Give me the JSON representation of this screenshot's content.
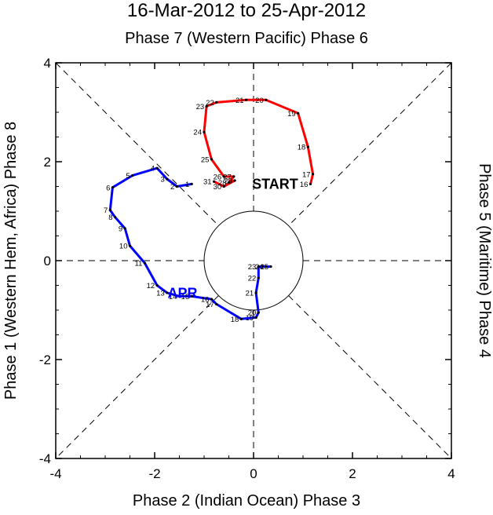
{
  "chart_data": {
    "type": "line",
    "title": "16-Mar-2012 to 25-Apr-2012",
    "phase_labels": {
      "top": "Phase 7 (Western Pacific) Phase 6",
      "bottom": "Phase 2 (Indian Ocean) Phase 3",
      "left": "Phase 1 (Western Hem, Africa) Phase 8",
      "right": "Phase 5 (Maritime) Phase 4"
    },
    "xlim": [
      -4,
      4
    ],
    "ylim": [
      -4,
      4
    ],
    "xticks": [
      "-4",
      "-2",
      "0",
      "2",
      "4"
    ],
    "yticks": [
      "-4",
      "-2",
      "0",
      "2",
      "4"
    ],
    "start_label": "START",
    "series": [
      {
        "name": "MAR",
        "label": "",
        "color": "#ff0000",
        "points": [
          {
            "day": "16",
            "x": 1.15,
            "y": 1.55
          },
          {
            "day": "17",
            "x": 1.2,
            "y": 1.75
          },
          {
            "day": "18",
            "x": 1.1,
            "y": 2.3
          },
          {
            "day": "19",
            "x": 0.9,
            "y": 2.98
          },
          {
            "day": "20",
            "x": 0.25,
            "y": 3.25
          },
          {
            "day": "21",
            "x": -0.15,
            "y": 3.25
          },
          {
            "day": "22",
            "x": -0.75,
            "y": 3.2
          },
          {
            "day": "23",
            "x": -0.95,
            "y": 3.12
          },
          {
            "day": "24",
            "x": -1.0,
            "y": 2.6
          },
          {
            "day": "25",
            "x": -0.85,
            "y": 2.05
          },
          {
            "day": "26",
            "x": -0.6,
            "y": 1.7
          },
          {
            "day": "27",
            "x": -0.4,
            "y": 1.7
          },
          {
            "day": "28",
            "x": -0.5,
            "y": 1.58
          },
          {
            "day": "29",
            "x": -0.38,
            "y": 1.62
          },
          {
            "day": "30",
            "x": -0.6,
            "y": 1.5
          },
          {
            "day": "31",
            "x": -0.8,
            "y": 1.6
          }
        ]
      },
      {
        "name": "APR",
        "label": "APR",
        "color": "#0000ff",
        "points": [
          {
            "day": "1",
            "x": -1.25,
            "y": 1.55
          },
          {
            "day": "2",
            "x": -1.55,
            "y": 1.5
          },
          {
            "day": "3",
            "x": -1.75,
            "y": 1.65
          },
          {
            "day": "4",
            "x": -1.95,
            "y": 1.87
          },
          {
            "day": "5",
            "x": -2.45,
            "y": 1.72
          },
          {
            "day": "6",
            "x": -2.85,
            "y": 1.48
          },
          {
            "day": "7",
            "x": -2.9,
            "y": 1.02
          },
          {
            "day": "8",
            "x": -2.8,
            "y": 0.88
          },
          {
            "day": "9",
            "x": -2.6,
            "y": 0.65
          },
          {
            "day": "10",
            "x": -2.5,
            "y": 0.3
          },
          {
            "day": "11",
            "x": -2.2,
            "y": -0.05
          },
          {
            "day": "12",
            "x": -1.95,
            "y": -0.5
          },
          {
            "day": "13",
            "x": -1.75,
            "y": -0.65
          },
          {
            "day": "14",
            "x": -1.5,
            "y": -0.72
          },
          {
            "day": "15",
            "x": -1.25,
            "y": -0.72
          },
          {
            "day": "16",
            "x": -0.85,
            "y": -0.78
          },
          {
            "day": "17",
            "x": -0.75,
            "y": -0.88
          },
          {
            "day": "18",
            "x": -0.25,
            "y": -1.18
          },
          {
            "day": "19",
            "x": 0.05,
            "y": -1.15
          },
          {
            "day": "20",
            "x": 0.1,
            "y": -1.05
          },
          {
            "day": "21",
            "x": 0.05,
            "y": -0.65
          },
          {
            "day": "22",
            "x": 0.1,
            "y": -0.35
          },
          {
            "day": "23",
            "x": 0.1,
            "y": -0.12
          },
          {
            "day": "24",
            "x": 0.25,
            "y": -0.12
          },
          {
            "day": "25",
            "x": 0.35,
            "y": -0.12
          }
        ]
      }
    ]
  }
}
